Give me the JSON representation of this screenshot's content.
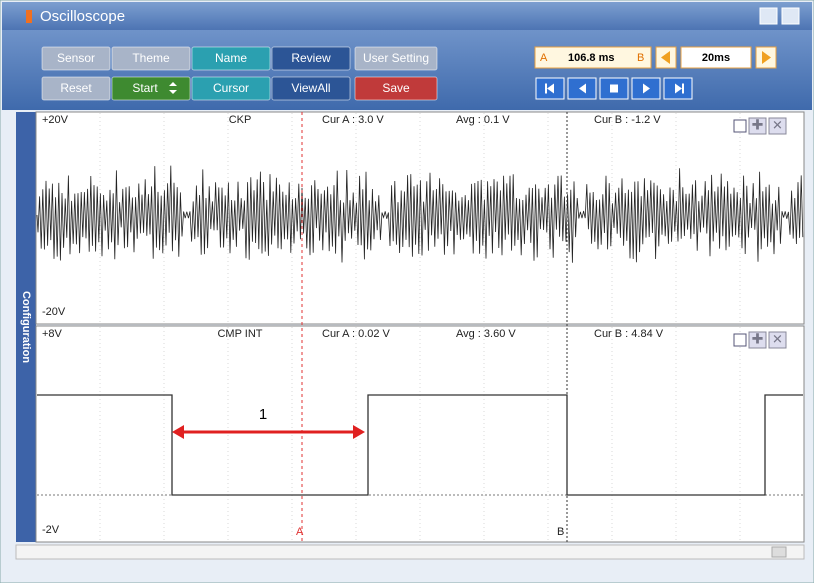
{
  "window": {
    "title": "Oscilloscope"
  },
  "toolbar": {
    "buttons": [
      "Sensor",
      "Theme",
      "Name",
      "Review",
      "User Setting",
      "Reset",
      "Start",
      "Cursor",
      "ViewAll",
      "Save"
    ],
    "time": {
      "cursor_a": "A",
      "time_a": "106.8 ms",
      "cursor_b": "B",
      "scale": "20ms"
    }
  },
  "sidebar": "Configuration",
  "channels": [
    {
      "max": "+20V",
      "name": "CKP",
      "cur_a": "Cur A : 3.0 V",
      "avg": "Avg : 0.1 V",
      "cur_b": "Cur B : -1.2 V",
      "min": "-20V"
    },
    {
      "max": "+8V",
      "name": "CMP INT",
      "cur_a": "Cur A : 0.02 V",
      "avg": "Avg : 3.60 V",
      "cur_b": "Cur B : 4.84 V",
      "min": "-2V"
    }
  ],
  "cursor_labels": [
    "A",
    "B"
  ],
  "annotation": "1"
}
